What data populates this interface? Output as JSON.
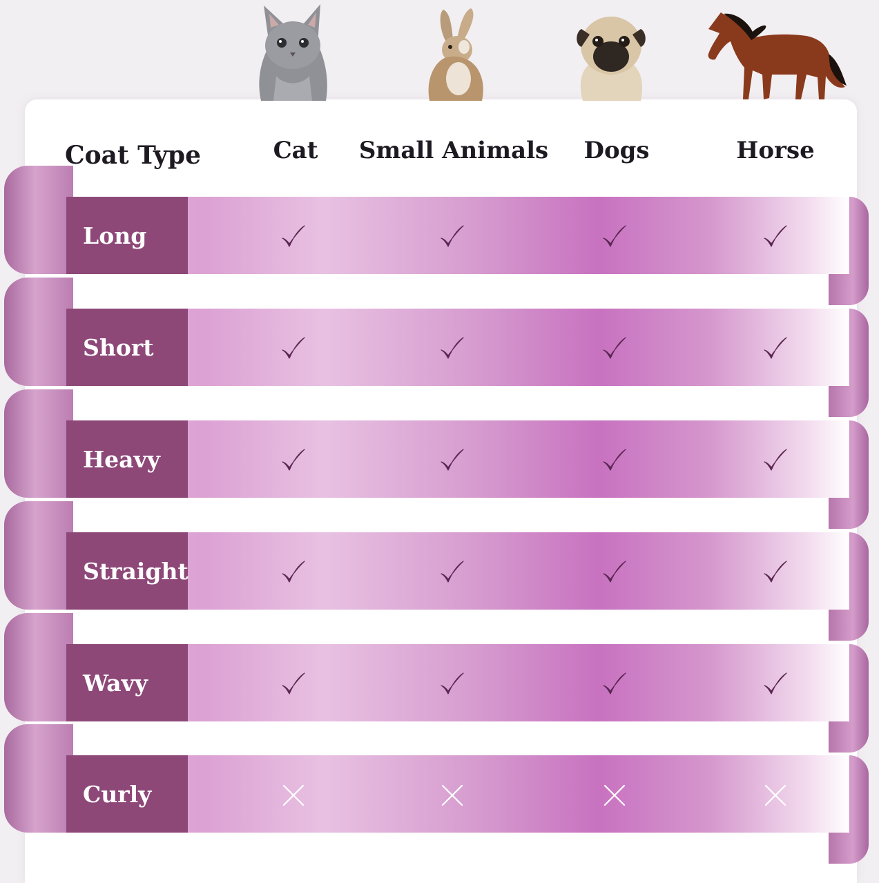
{
  "header": {
    "coat_type_label": "Coat Type",
    "columns": [
      "Cat",
      "Small Animals",
      "Dogs",
      "Horse"
    ]
  },
  "animal_images": [
    "cat-kitten-photo",
    "rabbit-photo",
    "pug-dog-photo",
    "horse-photo"
  ],
  "rows": [
    {
      "label": "Long",
      "values": [
        "check",
        "check",
        "check",
        "check"
      ]
    },
    {
      "label": "Short",
      "values": [
        "check",
        "check",
        "check",
        "check"
      ]
    },
    {
      "label": "Heavy",
      "values": [
        "check",
        "check",
        "check",
        "check"
      ]
    },
    {
      "label": "Straight",
      "values": [
        "check",
        "check",
        "check",
        "check"
      ]
    },
    {
      "label": "Wavy",
      "values": [
        "check",
        "check",
        "check",
        "check"
      ]
    },
    {
      "label": "Curly",
      "values": [
        "cross",
        "cross",
        "cross",
        "cross"
      ]
    }
  ],
  "colors": {
    "label_background": "#8d4878",
    "ribbon_pink": "#dca2d4",
    "ribbon_magenta": "#c872c0",
    "check_color": "#5a2652",
    "cross_color": "#ffffff",
    "text_dark": "#1e1a22"
  },
  "icons": {
    "check": "check-icon",
    "cross": "cross-icon"
  }
}
